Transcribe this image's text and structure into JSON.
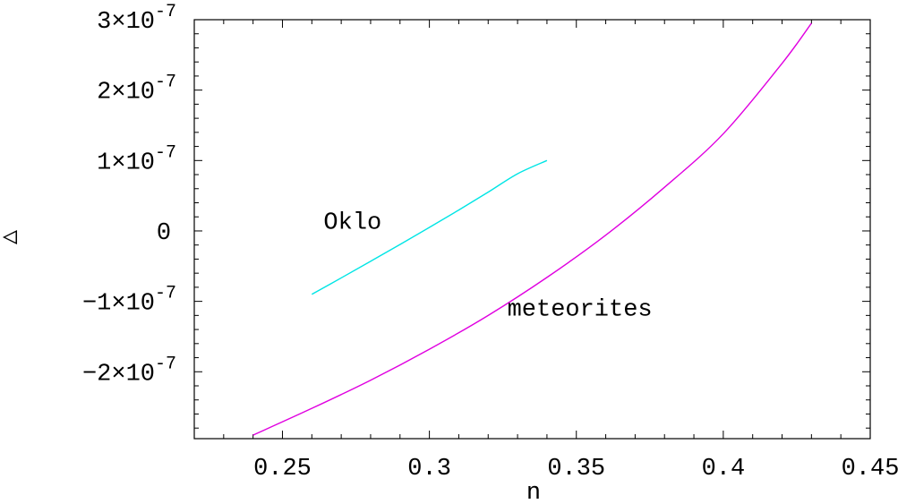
{
  "chart_data": {
    "type": "line",
    "xlabel": "n",
    "ylabel": "△",
    "xlim": [
      0.22,
      0.45
    ],
    "ylim": [
      -2.95e-07,
      3e-07
    ],
    "x_ticks": [
      {
        "value": 0.25,
        "label": "0.25"
      },
      {
        "value": 0.3,
        "label": "0.3"
      },
      {
        "value": 0.35,
        "label": "0.35"
      },
      {
        "value": 0.4,
        "label": "0.4"
      },
      {
        "value": 0.45,
        "label": "0.45"
      }
    ],
    "y_ticks": [
      {
        "value": 3e-07,
        "mant": "3",
        "exp": "-7"
      },
      {
        "value": 2e-07,
        "mant": "2",
        "exp": "-7"
      },
      {
        "value": 1e-07,
        "mant": "1",
        "exp": "-7"
      },
      {
        "value": 0,
        "mant": "0",
        "exp": ""
      },
      {
        "value": -1e-07,
        "mant": "−1",
        "exp": "-7"
      },
      {
        "value": -2e-07,
        "mant": "−2",
        "exp": "-7"
      }
    ],
    "grid": false,
    "series": [
      {
        "label": "Oklo",
        "color": "#00e5e5",
        "x": [
          0.26,
          0.27,
          0.28,
          0.29,
          0.3,
          0.31,
          0.32,
          0.33,
          0.34
        ],
        "y": [
          -9e-08,
          -6.67e-08,
          -4.31e-08,
          -1.93e-08,
          5e-09,
          2.97e-08,
          5.51e-08,
          8.12e-08,
          1e-07
        ]
      },
      {
        "label": "meteorites",
        "color": "#e000e0",
        "x": [
          0.24,
          0.26,
          0.28,
          0.3,
          0.32,
          0.34,
          0.36,
          0.38,
          0.4,
          0.42,
          0.43
        ],
        "y": [
          -2.9e-07,
          -2.52e-07,
          -2.12e-07,
          -1.68e-07,
          -1.2e-07,
          -6.6e-08,
          -6e-09,
          6.2e-08,
          1.38e-07,
          2.38e-07,
          2.95e-07
        ]
      }
    ],
    "annotations": [
      {
        "text": "Oklo",
        "x": 0.264,
        "y": 3e-09
      },
      {
        "text": "meteorites",
        "x": 0.3265,
        "y": -1.2e-07
      }
    ]
  }
}
